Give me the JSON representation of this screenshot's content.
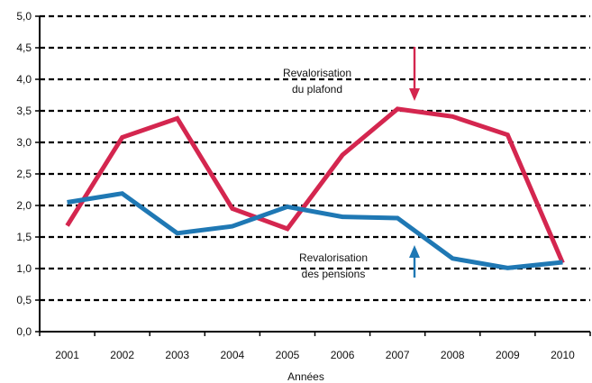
{
  "chart_data": {
    "type": "line",
    "title": "",
    "xlabel": "Années",
    "ylabel": "",
    "categories": [
      "2001",
      "2002",
      "2003",
      "2004",
      "2005",
      "2006",
      "2007",
      "2008",
      "2009",
      "2010"
    ],
    "yticks": [
      "0,0",
      "0,5",
      "1,0",
      "1,5",
      "2,0",
      "2,5",
      "3,0",
      "3,5",
      "4,0",
      "4,5",
      "5,0"
    ],
    "ylim": [
      0,
      5
    ],
    "grid": "horizontal dashed",
    "series": [
      {
        "name": "Revalorisation du plafond",
        "color": "#d4264f",
        "values": [
          1.68,
          3.08,
          3.38,
          1.95,
          1.63,
          2.8,
          3.53,
          3.41,
          3.12,
          1.09
        ]
      },
      {
        "name": "Revalorisation des pensions",
        "color": "#1f78b4",
        "values": [
          2.05,
          2.19,
          1.56,
          1.67,
          1.98,
          1.82,
          1.8,
          1.16,
          1.01,
          1.1
        ]
      }
    ],
    "annotations": [
      {
        "lines": [
          "Revalorisation",
          "du plafond"
        ],
        "series": 0,
        "arrow": "down",
        "arrow_color": "#d4264f"
      },
      {
        "lines": [
          "Revalorisation",
          "des pensions"
        ],
        "series": 1,
        "arrow": "up",
        "arrow_color": "#1f78b4"
      }
    ]
  }
}
